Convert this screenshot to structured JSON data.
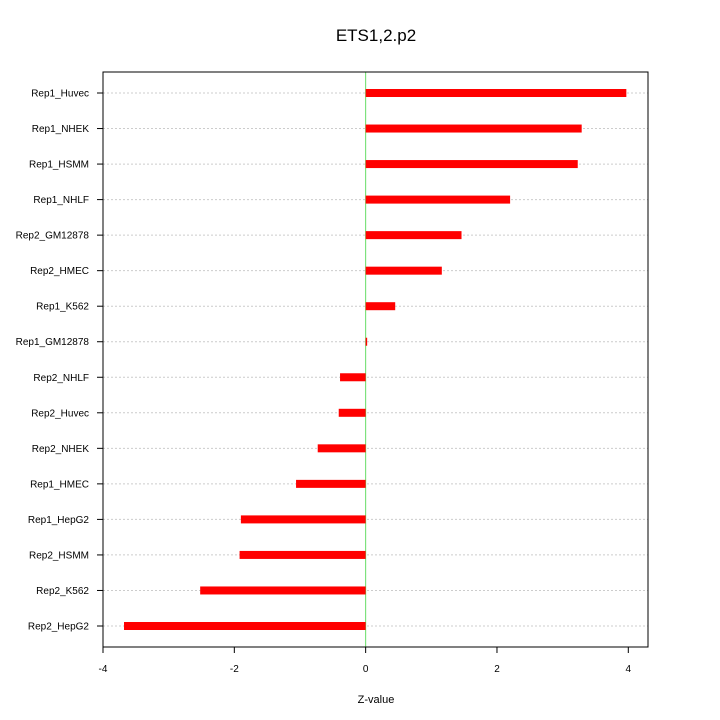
{
  "chart_data": {
    "type": "bar",
    "orientation": "horizontal",
    "title": "ETS1,2.p2",
    "xlabel": "Z-value",
    "ylabel": "",
    "xlim": [
      -4.0,
      4.3
    ],
    "xticks": [
      -4,
      -2,
      0,
      2,
      4
    ],
    "categories": [
      "Rep1_Huvec",
      "Rep1_NHEK",
      "Rep1_HSMM",
      "Rep1_NHLF",
      "Rep2_GM12878",
      "Rep2_HMEC",
      "Rep1_K562",
      "Rep1_GM12878",
      "Rep2_NHLF",
      "Rep2_Huvec",
      "Rep2_NHEK",
      "Rep1_HMEC",
      "Rep1_HepG2",
      "Rep2_HSMM",
      "Rep2_K562",
      "Rep2_HepG2"
    ],
    "values": [
      3.97,
      3.29,
      3.23,
      2.2,
      1.46,
      1.16,
      0.45,
      0.0,
      -0.39,
      -0.41,
      -0.73,
      -1.06,
      -1.9,
      -1.92,
      -2.52,
      -3.68
    ],
    "grid": true,
    "colors": {
      "bar": "#ff0000",
      "zero_line": "#66dd66",
      "grid": "#cccccc",
      "frame": "#000000"
    }
  }
}
